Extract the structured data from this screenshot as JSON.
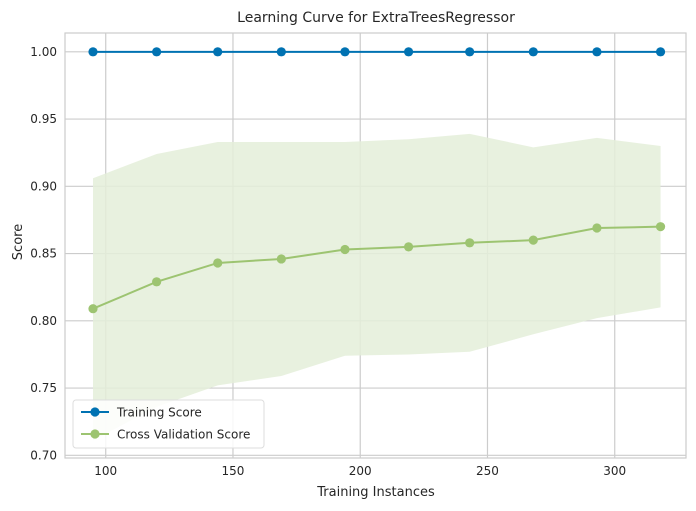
{
  "chart_data": {
    "type": "line",
    "title": "Learning Curve for ExtraTreesRegressor",
    "xlabel": "Training Instances",
    "ylabel": "Score",
    "xlim": [
      84,
      328
    ],
    "ylim": [
      0.698,
      1.014
    ],
    "x_ticks": [
      100,
      150,
      200,
      250,
      300
    ],
    "y_ticks": [
      0.7,
      0.75,
      0.8,
      0.85,
      0.9,
      0.95,
      1.0
    ],
    "x": [
      95,
      120,
      144,
      169,
      194,
      219,
      243,
      268,
      293,
      318
    ],
    "grid": true,
    "legend_position": "lower-left",
    "series": [
      {
        "name": "Training Score",
        "color": "#0072b2",
        "values": [
          1.0,
          1.0,
          1.0,
          1.0,
          1.0,
          1.0,
          1.0,
          1.0,
          1.0,
          1.0
        ],
        "band_upper": [
          1.0,
          1.0,
          1.0,
          1.0,
          1.0,
          1.0,
          1.0,
          1.0,
          1.0,
          1.0
        ],
        "band_lower": [
          1.0,
          1.0,
          1.0,
          1.0,
          1.0,
          1.0,
          1.0,
          1.0,
          1.0,
          1.0
        ]
      },
      {
        "name": "Cross Validation Score",
        "color": "#9dc471",
        "band_color": "#e4eed9",
        "values": [
          0.809,
          0.829,
          0.843,
          0.846,
          0.853,
          0.855,
          0.858,
          0.86,
          0.869,
          0.87
        ],
        "band_upper": [
          0.906,
          0.924,
          0.933,
          0.933,
          0.933,
          0.935,
          0.939,
          0.929,
          0.936,
          0.93
        ],
        "band_lower": [
          0.711,
          0.736,
          0.752,
          0.759,
          0.774,
          0.775,
          0.777,
          0.79,
          0.802,
          0.81
        ]
      }
    ]
  }
}
